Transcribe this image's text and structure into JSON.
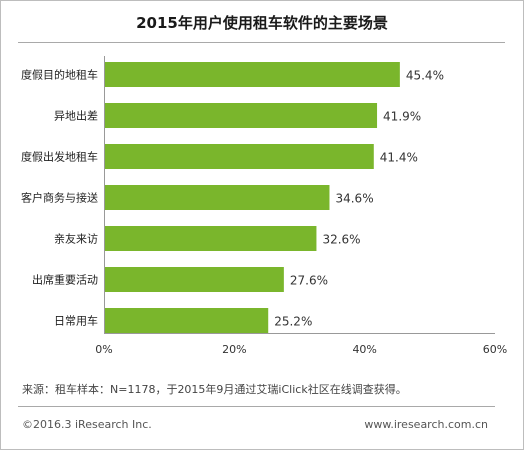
{
  "chart_data": {
    "type": "bar",
    "orientation": "horizontal",
    "title": "2015年用户使用租车软件的主要场景",
    "categories": [
      "度假目的地租车",
      "异地出差",
      "度假出发地租车",
      "客户商务与接送",
      "亲友来访",
      "出席重要活动",
      "日常用车"
    ],
    "values": [
      45.4,
      41.9,
      41.4,
      34.6,
      32.6,
      27.6,
      25.2
    ],
    "value_labels": [
      "45.4%",
      "41.9%",
      "41.4%",
      "34.6%",
      "32.6%",
      "27.6%",
      "25.2%"
    ],
    "xlim": [
      0,
      60
    ],
    "x_ticks": [
      "0%",
      "20%",
      "40%",
      "60%"
    ],
    "bar_color": "#7ab62c",
    "grid": false,
    "legend": "none"
  },
  "source": "来源：租车样本：N=1178，于2015年9月通过艾瑞iClick社区在线调查获得。",
  "copyright": "©2016.3 iResearch Inc.",
  "website": "www.iresearch.com.cn"
}
